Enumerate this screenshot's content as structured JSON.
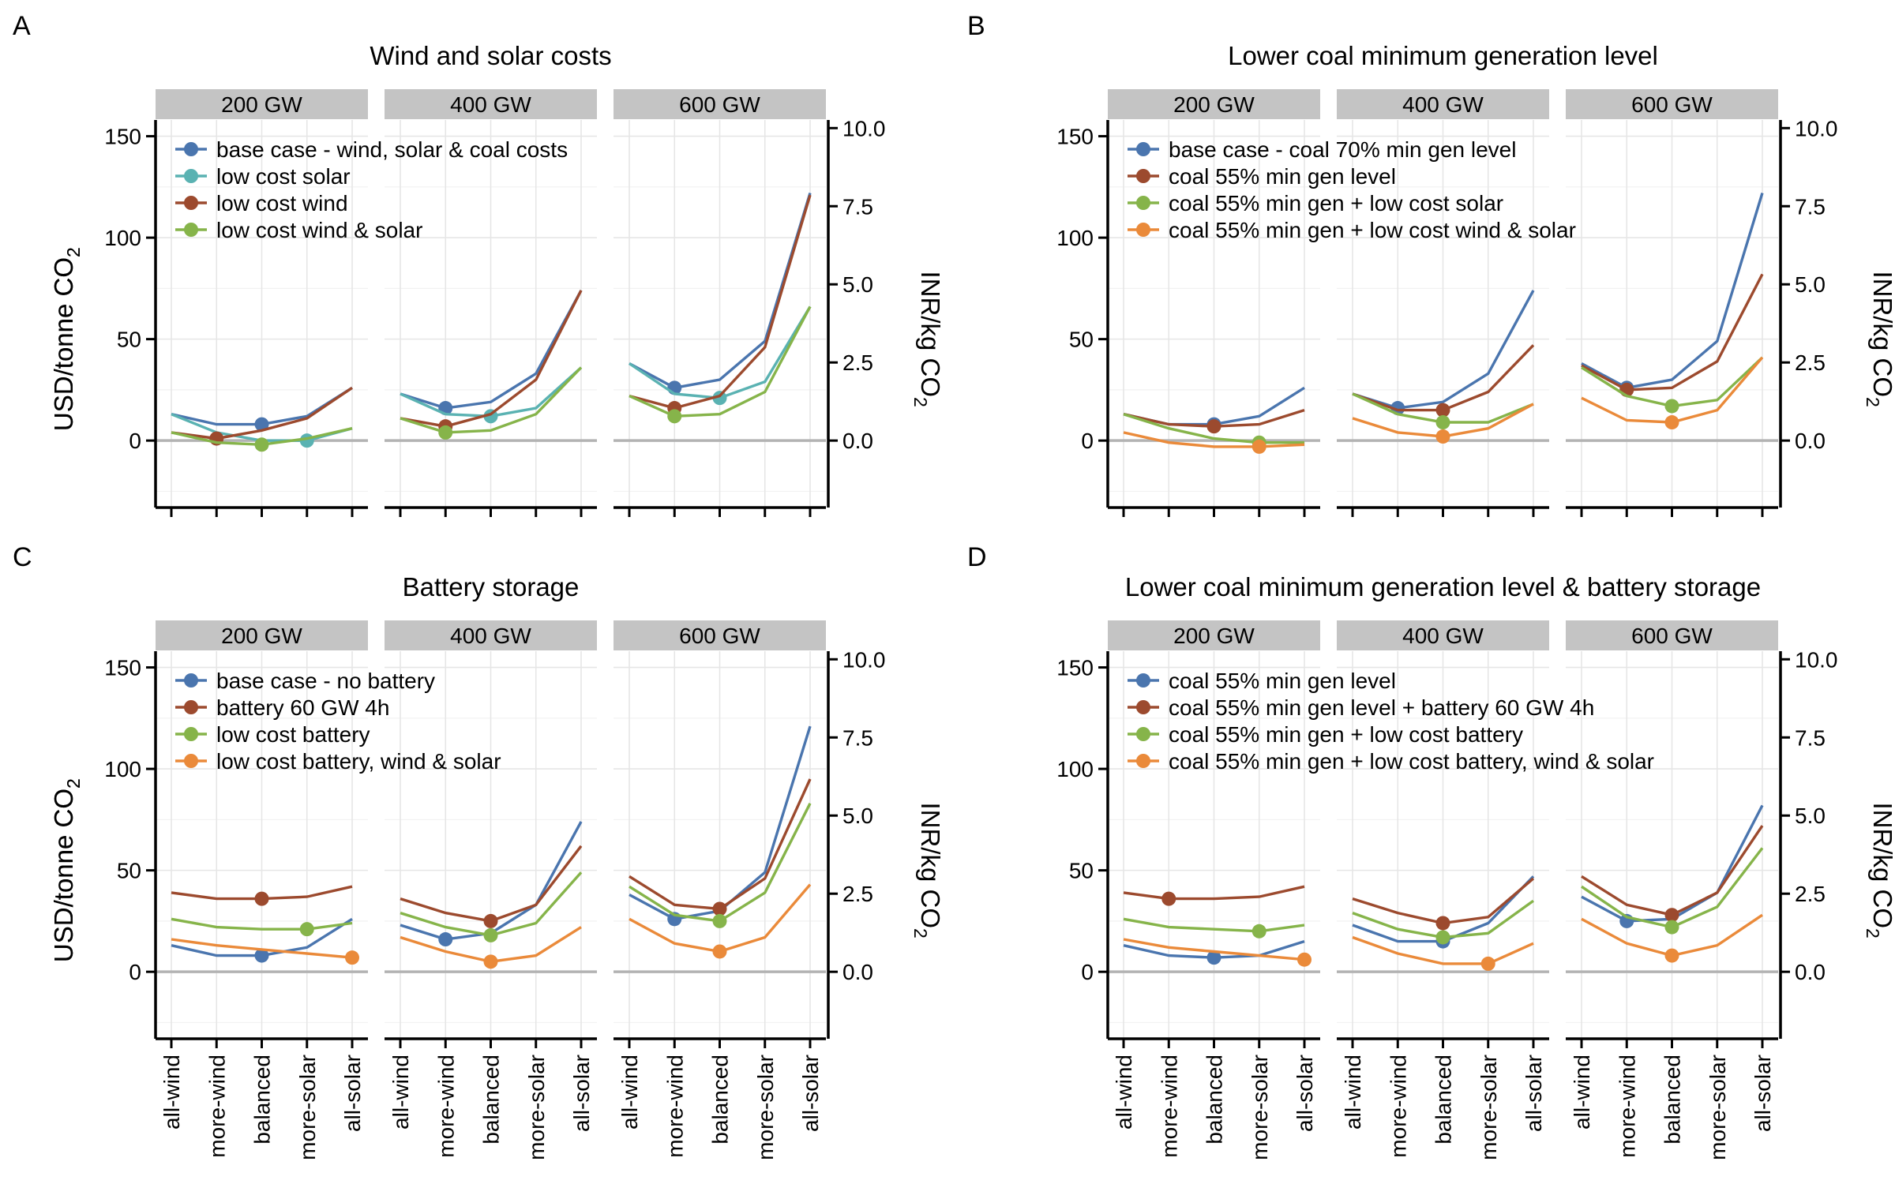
{
  "figure": {
    "facets": [
      "200 GW",
      "400 GW",
      "600 GW"
    ],
    "categories": [
      "all-wind",
      "more-wind",
      "balanced",
      "more-solar",
      "all-solar"
    ],
    "ylabel_left_prefix": "USD/tonne CO",
    "ylabel_right_prefix": "INR/kg CO",
    "subscript": "2",
    "y_left_ticks": [
      "0",
      "50",
      "100",
      "150"
    ],
    "y_right_ticks": [
      "0.0",
      "2.5",
      "5.0",
      "7.5",
      "10.0"
    ],
    "colors": {
      "blue": "#4a75ae",
      "teal": "#5ab2b2",
      "brown": "#9c4a2e",
      "green": "#86b44a",
      "orange": "#ea8a3a"
    }
  },
  "chart_data": [
    {
      "type": "line",
      "panel": "A",
      "title": "Wind and solar costs",
      "ylim": [
        -33,
        158
      ],
      "series": [
        {
          "name": "base case - wind, solar & coal costs",
          "color": "#4a75ae",
          "values": [
            [
              13,
              8,
              8,
              12,
              26
            ],
            [
              23,
              16,
              19,
              33,
              74
            ],
            [
              38,
              26,
              30,
              49,
              122
            ]
          ],
          "markers": [
            2,
            1,
            1
          ]
        },
        {
          "name": "low cost solar",
          "color": "#5ab2b2",
          "values": [
            [
              13,
              4,
              0,
              0,
              6
            ],
            [
              23,
              13,
              12,
              16,
              36
            ],
            [
              38,
              23,
              21,
              29,
              66
            ]
          ],
          "markers": [
            3,
            2,
            2
          ]
        },
        {
          "name": "low cost wind",
          "color": "#9c4a2e",
          "values": [
            [
              4,
              1,
              5,
              11,
              26
            ],
            [
              11,
              7,
              13,
              30,
              74
            ],
            [
              22,
              16,
              22,
              46,
              121
            ]
          ],
          "markers": [
            1,
            1,
            1
          ]
        },
        {
          "name": "low cost wind & solar",
          "color": "#86b44a",
          "values": [
            [
              4,
              -1,
              -2,
              1,
              6
            ],
            [
              11,
              4,
              5,
              13,
              36
            ],
            [
              22,
              12,
              13,
              24,
              66
            ]
          ],
          "markers": [
            2,
            1,
            1
          ]
        }
      ]
    },
    {
      "type": "line",
      "panel": "B",
      "title": "Lower coal minimum generation level",
      "ylim": [
        -33,
        158
      ],
      "series": [
        {
          "name": "base case - coal 70% min gen level",
          "color": "#4a75ae",
          "values": [
            [
              13,
              8,
              8,
              12,
              26
            ],
            [
              23,
              16,
              19,
              33,
              74
            ],
            [
              38,
              26,
              30,
              49,
              122
            ]
          ],
          "markers": [
            2,
            1,
            1
          ]
        },
        {
          "name": "coal 55% min gen level",
          "color": "#9c4a2e",
          "values": [
            [
              13,
              8,
              7,
              8,
              15
            ],
            [
              23,
              15,
              15,
              24,
              47
            ],
            [
              37,
              25,
              26,
              39,
              82
            ]
          ],
          "markers": [
            2,
            2,
            1
          ]
        },
        {
          "name": "coal 55% min gen + low cost solar",
          "color": "#86b44a",
          "values": [
            [
              13,
              6,
              1,
              -1,
              -1
            ],
            [
              23,
              13,
              9,
              9,
              18
            ],
            [
              36,
              22,
              17,
              20,
              41
            ]
          ],
          "markers": [
            3,
            2,
            2
          ]
        },
        {
          "name": "coal 55% min gen + low cost wind & solar",
          "color": "#ea8a3a",
          "values": [
            [
              4,
              -1,
              -3,
              -3,
              -2
            ],
            [
              11,
              4,
              2,
              6,
              18
            ],
            [
              21,
              10,
              9,
              15,
              41
            ]
          ],
          "markers": [
            3,
            2,
            2
          ]
        }
      ]
    },
    {
      "type": "line",
      "panel": "C",
      "title": "Battery storage",
      "ylim": [
        -33,
        158
      ],
      "series": [
        {
          "name": "base case - no battery",
          "color": "#4a75ae",
          "values": [
            [
              13,
              8,
              8,
              12,
              26
            ],
            [
              23,
              16,
              19,
              33,
              74
            ],
            [
              38,
              26,
              30,
              49,
              121
            ]
          ],
          "markers": [
            2,
            1,
            1
          ]
        },
        {
          "name": "battery 60 GW 4h",
          "color": "#9c4a2e",
          "values": [
            [
              39,
              36,
              36,
              37,
              42
            ],
            [
              36,
              29,
              25,
              33,
              62
            ],
            [
              47,
              33,
              31,
              46,
              95
            ]
          ],
          "markers": [
            2,
            2,
            2
          ]
        },
        {
          "name": "low cost battery",
          "color": "#86b44a",
          "values": [
            [
              26,
              22,
              21,
              21,
              24
            ],
            [
              29,
              22,
              18,
              24,
              49
            ],
            [
              42,
              28,
              25,
              39,
              83
            ]
          ],
          "markers": [
            3,
            2,
            2
          ]
        },
        {
          "name": "low cost battery, wind & solar",
          "color": "#ea8a3a",
          "values": [
            [
              16,
              13,
              11,
              9,
              7
            ],
            [
              17,
              10,
              5,
              8,
              22
            ],
            [
              26,
              14,
              10,
              17,
              43
            ]
          ],
          "markers": [
            4,
            2,
            2
          ]
        }
      ]
    },
    {
      "type": "line",
      "panel": "D",
      "title": "Lower coal minimum generation level & battery storage",
      "ylim": [
        -33,
        158
      ],
      "series": [
        {
          "name": "coal 55% min gen level",
          "color": "#4a75ae",
          "values": [
            [
              13,
              8,
              7,
              8,
              15
            ],
            [
              23,
              15,
              15,
              24,
              47
            ],
            [
              37,
              25,
              26,
              39,
              82
            ]
          ],
          "markers": [
            2,
            2,
            1
          ]
        },
        {
          "name": "coal 55% min gen level + battery 60 GW 4h",
          "color": "#9c4a2e",
          "values": [
            [
              39,
              36,
              36,
              37,
              42
            ],
            [
              36,
              29,
              24,
              27,
              46
            ],
            [
              47,
              33,
              28,
              39,
              72
            ]
          ],
          "markers": [
            1,
            2,
            2
          ]
        },
        {
          "name": "coal 55% min gen + low cost battery",
          "color": "#86b44a",
          "values": [
            [
              26,
              22,
              21,
              20,
              23
            ],
            [
              29,
              21,
              17,
              19,
              35
            ],
            [
              42,
              27,
              22,
              32,
              61
            ]
          ],
          "markers": [
            3,
            2,
            2
          ]
        },
        {
          "name": "coal 55% min gen + low cost battery, wind & solar",
          "color": "#ea8a3a",
          "values": [
            [
              16,
              12,
              10,
              8,
              6
            ],
            [
              17,
              9,
              4,
              4,
              14
            ],
            [
              26,
              14,
              8,
              13,
              28
            ]
          ],
          "markers": [
            4,
            3,
            2
          ]
        }
      ]
    }
  ]
}
